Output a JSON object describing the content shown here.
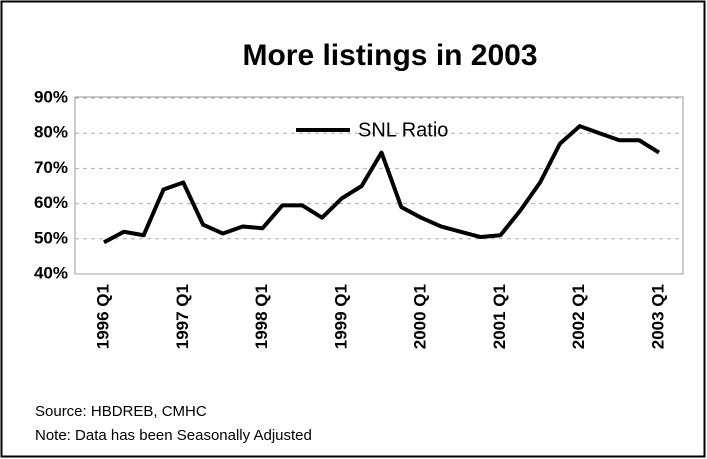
{
  "chart_data": {
    "type": "line",
    "title": "More listings in 2003",
    "categories": [
      "1996 Q1",
      null,
      null,
      null,
      "1997 Q1",
      null,
      null,
      null,
      "1998 Q1",
      null,
      null,
      null,
      "1999 Q1",
      null,
      null,
      null,
      "2000 Q1",
      null,
      null,
      null,
      "2001 Q1",
      null,
      null,
      null,
      "2002 Q1",
      null,
      null,
      null,
      "2003 Q1"
    ],
    "series": [
      {
        "name": "SNL Ratio",
        "color": "#000000",
        "values": [
          49,
          52,
          51,
          64,
          66,
          54,
          51.5,
          53.5,
          53,
          59.5,
          59.5,
          56,
          61.5,
          65,
          74.5,
          59,
          56,
          53.5,
          52,
          50.5,
          51,
          58,
          66,
          77,
          82,
          80,
          78,
          78,
          74.5
        ]
      }
    ],
    "ylim": [
      40,
      90
    ],
    "yticks": [
      {
        "value": 40,
        "label": "40%"
      },
      {
        "value": 50,
        "label": "50%"
      },
      {
        "value": 60,
        "label": "60%"
      },
      {
        "value": 70,
        "label": "70%"
      },
      {
        "value": 80,
        "label": "80%"
      },
      {
        "value": 90,
        "label": "90%"
      }
    ],
    "grid": true,
    "source": "Source: HBDREB, CMHC",
    "note": "Note: Data has been Seasonally Adjusted"
  }
}
